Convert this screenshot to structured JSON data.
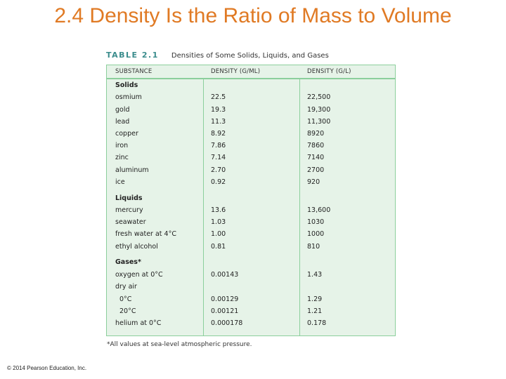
{
  "slide": {
    "title": "2.4 Density Is the Ratio of Mass to Volume",
    "copyright": "© 2014 Pearson Education, Inc."
  },
  "table": {
    "number": "TABLE 2.1",
    "caption": "Densities of Some Solids, Liquids, and Gases",
    "headers": [
      "SUBSTANCE",
      "DENSITY (G/ML)",
      "DENSITY (G/L)"
    ],
    "rows": [
      {
        "substance": "Solids",
        "g_ml": "",
        "g_l": ""
      },
      {
        "substance": "osmium",
        "g_ml": "22.5",
        "g_l": "22,500"
      },
      {
        "substance": "gold",
        "g_ml": "19.3",
        "g_l": "19,300"
      },
      {
        "substance": "lead",
        "g_ml": "11.3",
        "g_l": "11,300"
      },
      {
        "substance": "copper",
        "g_ml": "8.92",
        "g_l": "8920"
      },
      {
        "substance": "iron",
        "g_ml": "7.86",
        "g_l": "7860"
      },
      {
        "substance": "zinc",
        "g_ml": "7.14",
        "g_l": "7140"
      },
      {
        "substance": "aluminum",
        "g_ml": "2.70",
        "g_l": "2700"
      },
      {
        "substance": "ice",
        "g_ml": "0.92",
        "g_l": "920"
      },
      {
        "substance": "Liquids",
        "g_ml": "",
        "g_l": ""
      },
      {
        "substance": "mercury",
        "g_ml": "13.6",
        "g_l": "13,600"
      },
      {
        "substance": "seawater",
        "g_ml": "1.03",
        "g_l": "1030"
      },
      {
        "substance": "fresh water at 4°C",
        "g_ml": "1.00",
        "g_l": "1000"
      },
      {
        "substance": "ethyl alcohol",
        "g_ml": "0.81",
        "g_l": "810"
      },
      {
        "substance": "Gases*",
        "g_ml": "",
        "g_l": ""
      },
      {
        "substance": "oxygen at 0°C",
        "g_ml": "0.00143",
        "g_l": "1.43"
      },
      {
        "substance": "dry air",
        "g_ml": "",
        "g_l": ""
      },
      {
        "substance": "0°C",
        "g_ml": "0.00129",
        "g_l": "1.29"
      },
      {
        "substance": "20°C",
        "g_ml": "0.00121",
        "g_l": "1.21"
      },
      {
        "substance": "helium at 0°C",
        "g_ml": "0.000178",
        "g_l": "0.178"
      }
    ],
    "footnote": "*All values at sea-level atmospheric pressure."
  }
}
